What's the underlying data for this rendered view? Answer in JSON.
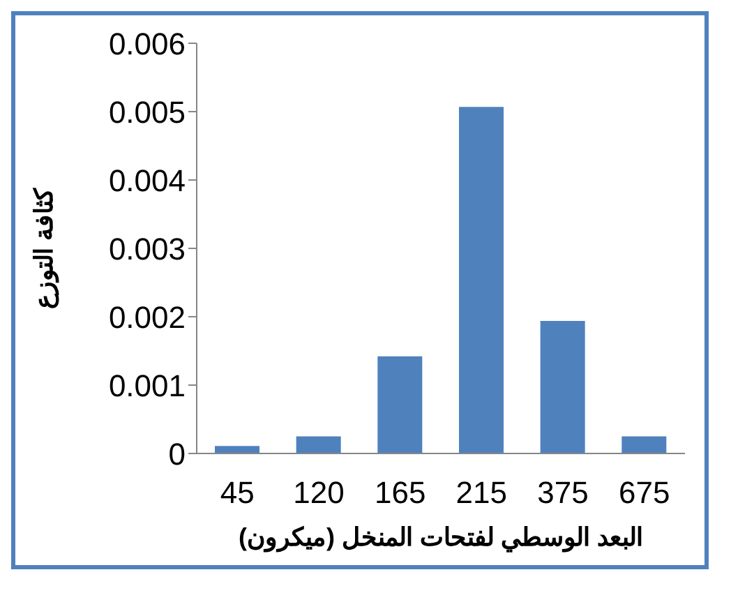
{
  "chart_data": {
    "type": "bar",
    "xlabel": "البعد الوسطي لفتحات المنخل (ميكرون)",
    "ylabel": "كثافة التوزع",
    "categories": [
      "45",
      "120",
      "165",
      "215",
      "375",
      "675"
    ],
    "values": [
      0.00011,
      0.00025,
      0.00142,
      0.00507,
      0.00194,
      0.00025
    ],
    "color": "#4f81bd",
    "ylim": [
      0,
      0.006
    ],
    "yticks": [
      0,
      0.001,
      0.002,
      0.003,
      0.004,
      0.005,
      0.006
    ],
    "grid": false
  }
}
